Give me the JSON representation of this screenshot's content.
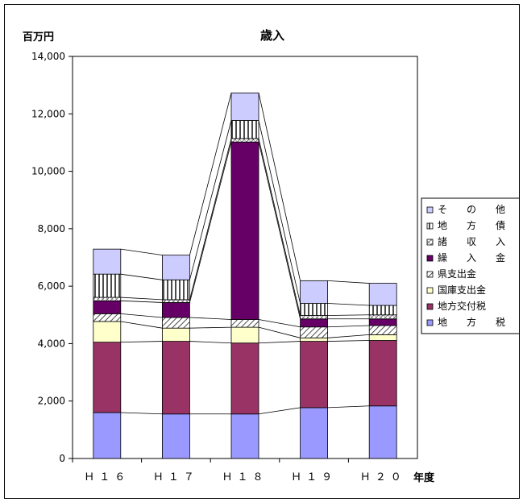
{
  "chart_data": {
    "type": "bar",
    "stacked": true,
    "title": "歳入",
    "ylabel": "百万円",
    "xlabel": "年度",
    "ylim": [
      0,
      14000
    ],
    "ytick_step": 2000,
    "ytick_labels": [
      "0",
      "2,000",
      "4,000",
      "6,000",
      "8,000",
      "10,000",
      "12,000",
      "14,000"
    ],
    "grid": false,
    "legend_position": "right",
    "categories": [
      "Ｈ１６",
      "Ｈ１７",
      "Ｈ１８",
      "Ｈ１９",
      "Ｈ２０"
    ],
    "series": [
      {
        "name": "地　　方　　税",
        "color": "#9999ff",
        "pattern": "solid",
        "values": [
          1600,
          1550,
          1550,
          1770,
          1830
        ]
      },
      {
        "name": "地方交付税",
        "color": "#993366",
        "pattern": "solid",
        "values": [
          2450,
          2530,
          2470,
          2310,
          2280
        ]
      },
      {
        "name": "国庫支出金",
        "color": "#ffffcc",
        "pattern": "solid",
        "values": [
          720,
          460,
          550,
          120,
          200
        ]
      },
      {
        "name": "県支出金",
        "color": "#ffffff",
        "pattern": "hatch",
        "values": [
          270,
          370,
          270,
          380,
          320
        ]
      },
      {
        "name": "繰　　入　　金",
        "color": "#660066",
        "pattern": "solid",
        "values": [
          450,
          520,
          6180,
          280,
          230
        ]
      },
      {
        "name": "諸　　収　　入",
        "color": "#ffffff",
        "pattern": "cross",
        "values": [
          120,
          100,
          120,
          120,
          140
        ]
      },
      {
        "name": "地　　方　　債",
        "color": "#ffffff",
        "pattern": "vlines",
        "values": [
          810,
          690,
          630,
          420,
          330
        ]
      },
      {
        "name": "そ　　の　　他",
        "color": "#ccccff",
        "pattern": "solid",
        "values": [
          870,
          860,
          960,
          790,
          770
        ]
      }
    ]
  }
}
